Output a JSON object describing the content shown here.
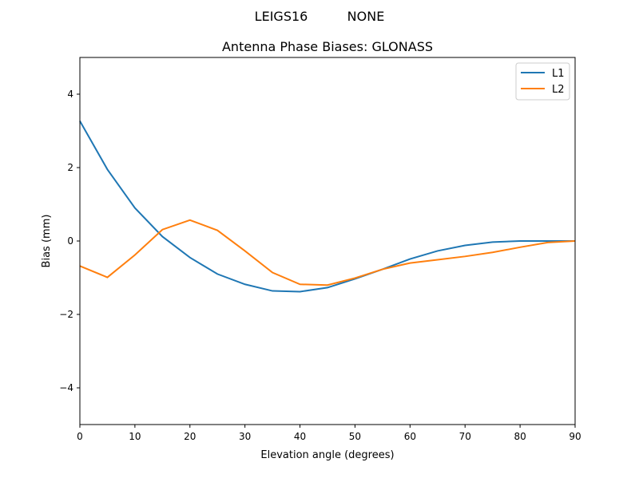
{
  "suptitle_left": "LEIGS16",
  "suptitle_right": "NONE",
  "chart_data": {
    "type": "line",
    "title": "Antenna Phase Biases: GLONASS",
    "xlabel": "Elevation angle (degrees)",
    "ylabel": "Bias (mm)",
    "xlim": [
      0,
      90
    ],
    "ylim": [
      -5,
      5
    ],
    "xticks": [
      0,
      10,
      20,
      30,
      40,
      50,
      60,
      70,
      80,
      90
    ],
    "yticks": [
      -4,
      -2,
      0,
      2,
      4
    ],
    "ytick_labels": [
      "−4",
      "−2",
      "0",
      "2",
      "4"
    ],
    "grid": false,
    "legend": "top-right",
    "x": [
      0,
      5,
      10,
      15,
      20,
      25,
      30,
      35,
      40,
      45,
      50,
      55,
      60,
      65,
      70,
      75,
      80,
      85,
      90
    ],
    "series": [
      {
        "name": "L1",
        "color": "#1f77b4",
        "values": [
          3.27,
          1.95,
          0.9,
          0.12,
          -0.45,
          -0.9,
          -1.18,
          -1.36,
          -1.38,
          -1.27,
          -1.03,
          -0.77,
          -0.49,
          -0.27,
          -0.12,
          -0.03,
          0,
          0,
          0
        ]
      },
      {
        "name": "L2",
        "color": "#ff7f0e",
        "values": [
          -0.68,
          -0.99,
          -0.38,
          0.31,
          0.57,
          0.29,
          -0.27,
          -0.86,
          -1.18,
          -1.2,
          -1.01,
          -0.77,
          -0.6,
          -0.51,
          -0.42,
          -0.31,
          -0.17,
          -0.04,
          0
        ]
      }
    ]
  }
}
